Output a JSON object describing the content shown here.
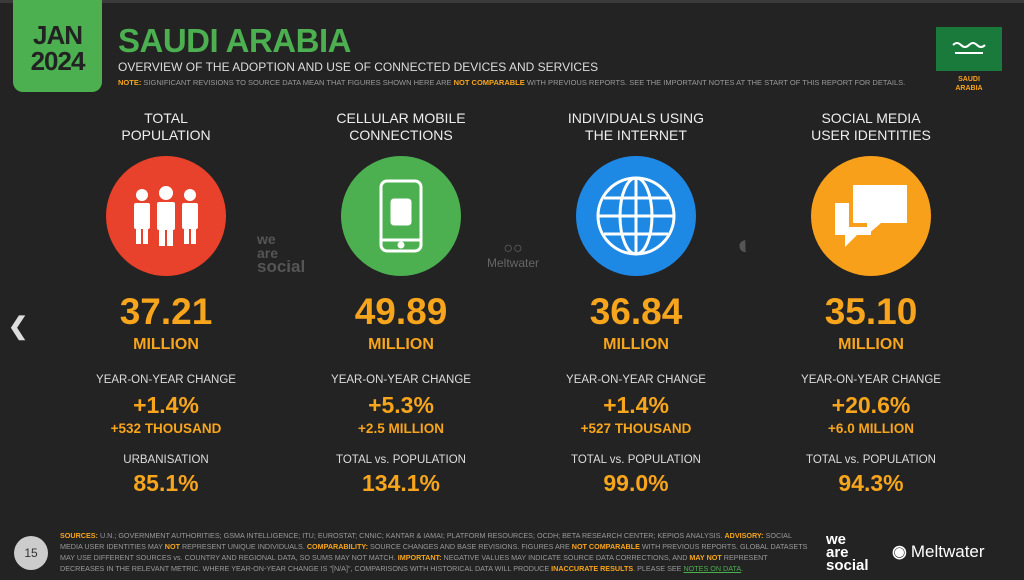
{
  "header": {
    "date_month": "JAN",
    "date_year": "2024",
    "title": "SAUDI ARABIA",
    "subtitle": "OVERVIEW OF THE ADOPTION AND USE OF CONNECTED DEVICES AND SERVICES",
    "note_label": "NOTE:",
    "note_text1": " SIGNIFICANT REVISIONS TO SOURCE DATA MEAN THAT FIGURES SHOWN HERE ARE ",
    "note_highlight": "NOT COMPARABLE",
    "note_text2": " WITH PREVIOUS REPORTS. SEE THE IMPORTANT NOTES AT THE START OF THIS REPORT FOR DETAILS.",
    "flag_label_1": "SAUDI",
    "flag_label_2": "ARABIA"
  },
  "colors": {
    "accent": "#4caf50",
    "highlight": "#f7a51c",
    "population": "#e8412c",
    "cellular": "#4caf50",
    "internet": "#1e88e5",
    "social": "#f9a01b"
  },
  "stats": [
    {
      "title1": "TOTAL",
      "title2": "POPULATION",
      "icon": "people-icon",
      "value": "37.21",
      "unit": "MILLION",
      "change_label": "YEAR-ON-YEAR CHANGE",
      "change": "+1.4%",
      "change_abs": "+532 THOUSAND",
      "extra_label": "URBANISATION",
      "extra_value": "85.1%"
    },
    {
      "title1": "CELLULAR MOBILE",
      "title2": "CONNECTIONS",
      "icon": "mobile-phone-icon",
      "value": "49.89",
      "unit": "MILLION",
      "change_label": "YEAR-ON-YEAR CHANGE",
      "change": "+5.3%",
      "change_abs": "+2.5 MILLION",
      "extra_label": "TOTAL vs. POPULATION",
      "extra_value": "134.1%"
    },
    {
      "title1": "INDIVIDUALS USING",
      "title2": "THE INTERNET",
      "icon": "globe-icon",
      "value": "36.84",
      "unit": "MILLION",
      "change_label": "YEAR-ON-YEAR CHANGE",
      "change": "+1.4%",
      "change_abs": "+527 THOUSAND",
      "extra_label": "TOTAL vs. POPULATION",
      "extra_value": "99.0%"
    },
    {
      "title1": "SOCIAL MEDIA",
      "title2": "USER IDENTITIES",
      "icon": "chat-bubbles-icon",
      "value": "35.10",
      "unit": "MILLION",
      "change_label": "YEAR-ON-YEAR CHANGE",
      "change": "+20.6%",
      "change_abs": "+6.0 MILLION",
      "extra_label": "TOTAL vs. POPULATION",
      "extra_value": "94.3%"
    }
  ],
  "watermarks": {
    "we": "we",
    "are": "are",
    "social": "social",
    "meltwater": "Meltwater"
  },
  "footer": {
    "page_number": "15",
    "segments": [
      {
        "text": "SOURCES:",
        "style": "o"
      },
      {
        "text": " U.N.; GOVERNMENT AUTHORITIES; GSMA INTELLIGENCE; ITU; EUROSTAT; CNNIC; KANTAR & IAMAI; PLATFORM RESOURCES; OCDH; BETA RESEARCH CENTER; KEPIOS ANALYSIS. ",
        "style": "g"
      },
      {
        "text": "ADVISORY:",
        "style": "o"
      },
      {
        "text": " SOCIAL MEDIA USER IDENTITIES MAY ",
        "style": "g"
      },
      {
        "text": "NOT",
        "style": "o"
      },
      {
        "text": " REPRESENT UNIQUE INDIVIDUALS. ",
        "style": "g"
      },
      {
        "text": "COMPARABILITY:",
        "style": "o"
      },
      {
        "text": " SOURCE CHANGES AND BASE REVISIONS. FIGURES ARE ",
        "style": "g"
      },
      {
        "text": "NOT COMPARABLE",
        "style": "o"
      },
      {
        "text": " WITH PREVIOUS REPORTS. GLOBAL DATASETS MAY USE DIFFERENT SOURCES vs. COUNTRY AND REGIONAL DATA, SO SUMS MAY NOT MATCH. ",
        "style": "g"
      },
      {
        "text": "IMPORTANT:",
        "style": "o"
      },
      {
        "text": " NEGATIVE VALUES MAY INDICATE SOURCE DATA CORRECTIONS, AND ",
        "style": "g"
      },
      {
        "text": "MAY NOT",
        "style": "o"
      },
      {
        "text": " REPRESENT DECREASES IN THE RELEVANT METRIC. WHERE YEAR-ON-YEAR CHANGE IS \"[N/A]\", COMPARISONS WITH HISTORICAL DATA WILL PRODUCE ",
        "style": "g"
      },
      {
        "text": "INACCURATE RESULTS",
        "style": "o"
      },
      {
        "text": ". PLEASE SEE ",
        "style": "g"
      },
      {
        "text": "NOTES ON DATA",
        "style": "lnk"
      },
      {
        "text": ".",
        "style": "g"
      }
    ]
  }
}
